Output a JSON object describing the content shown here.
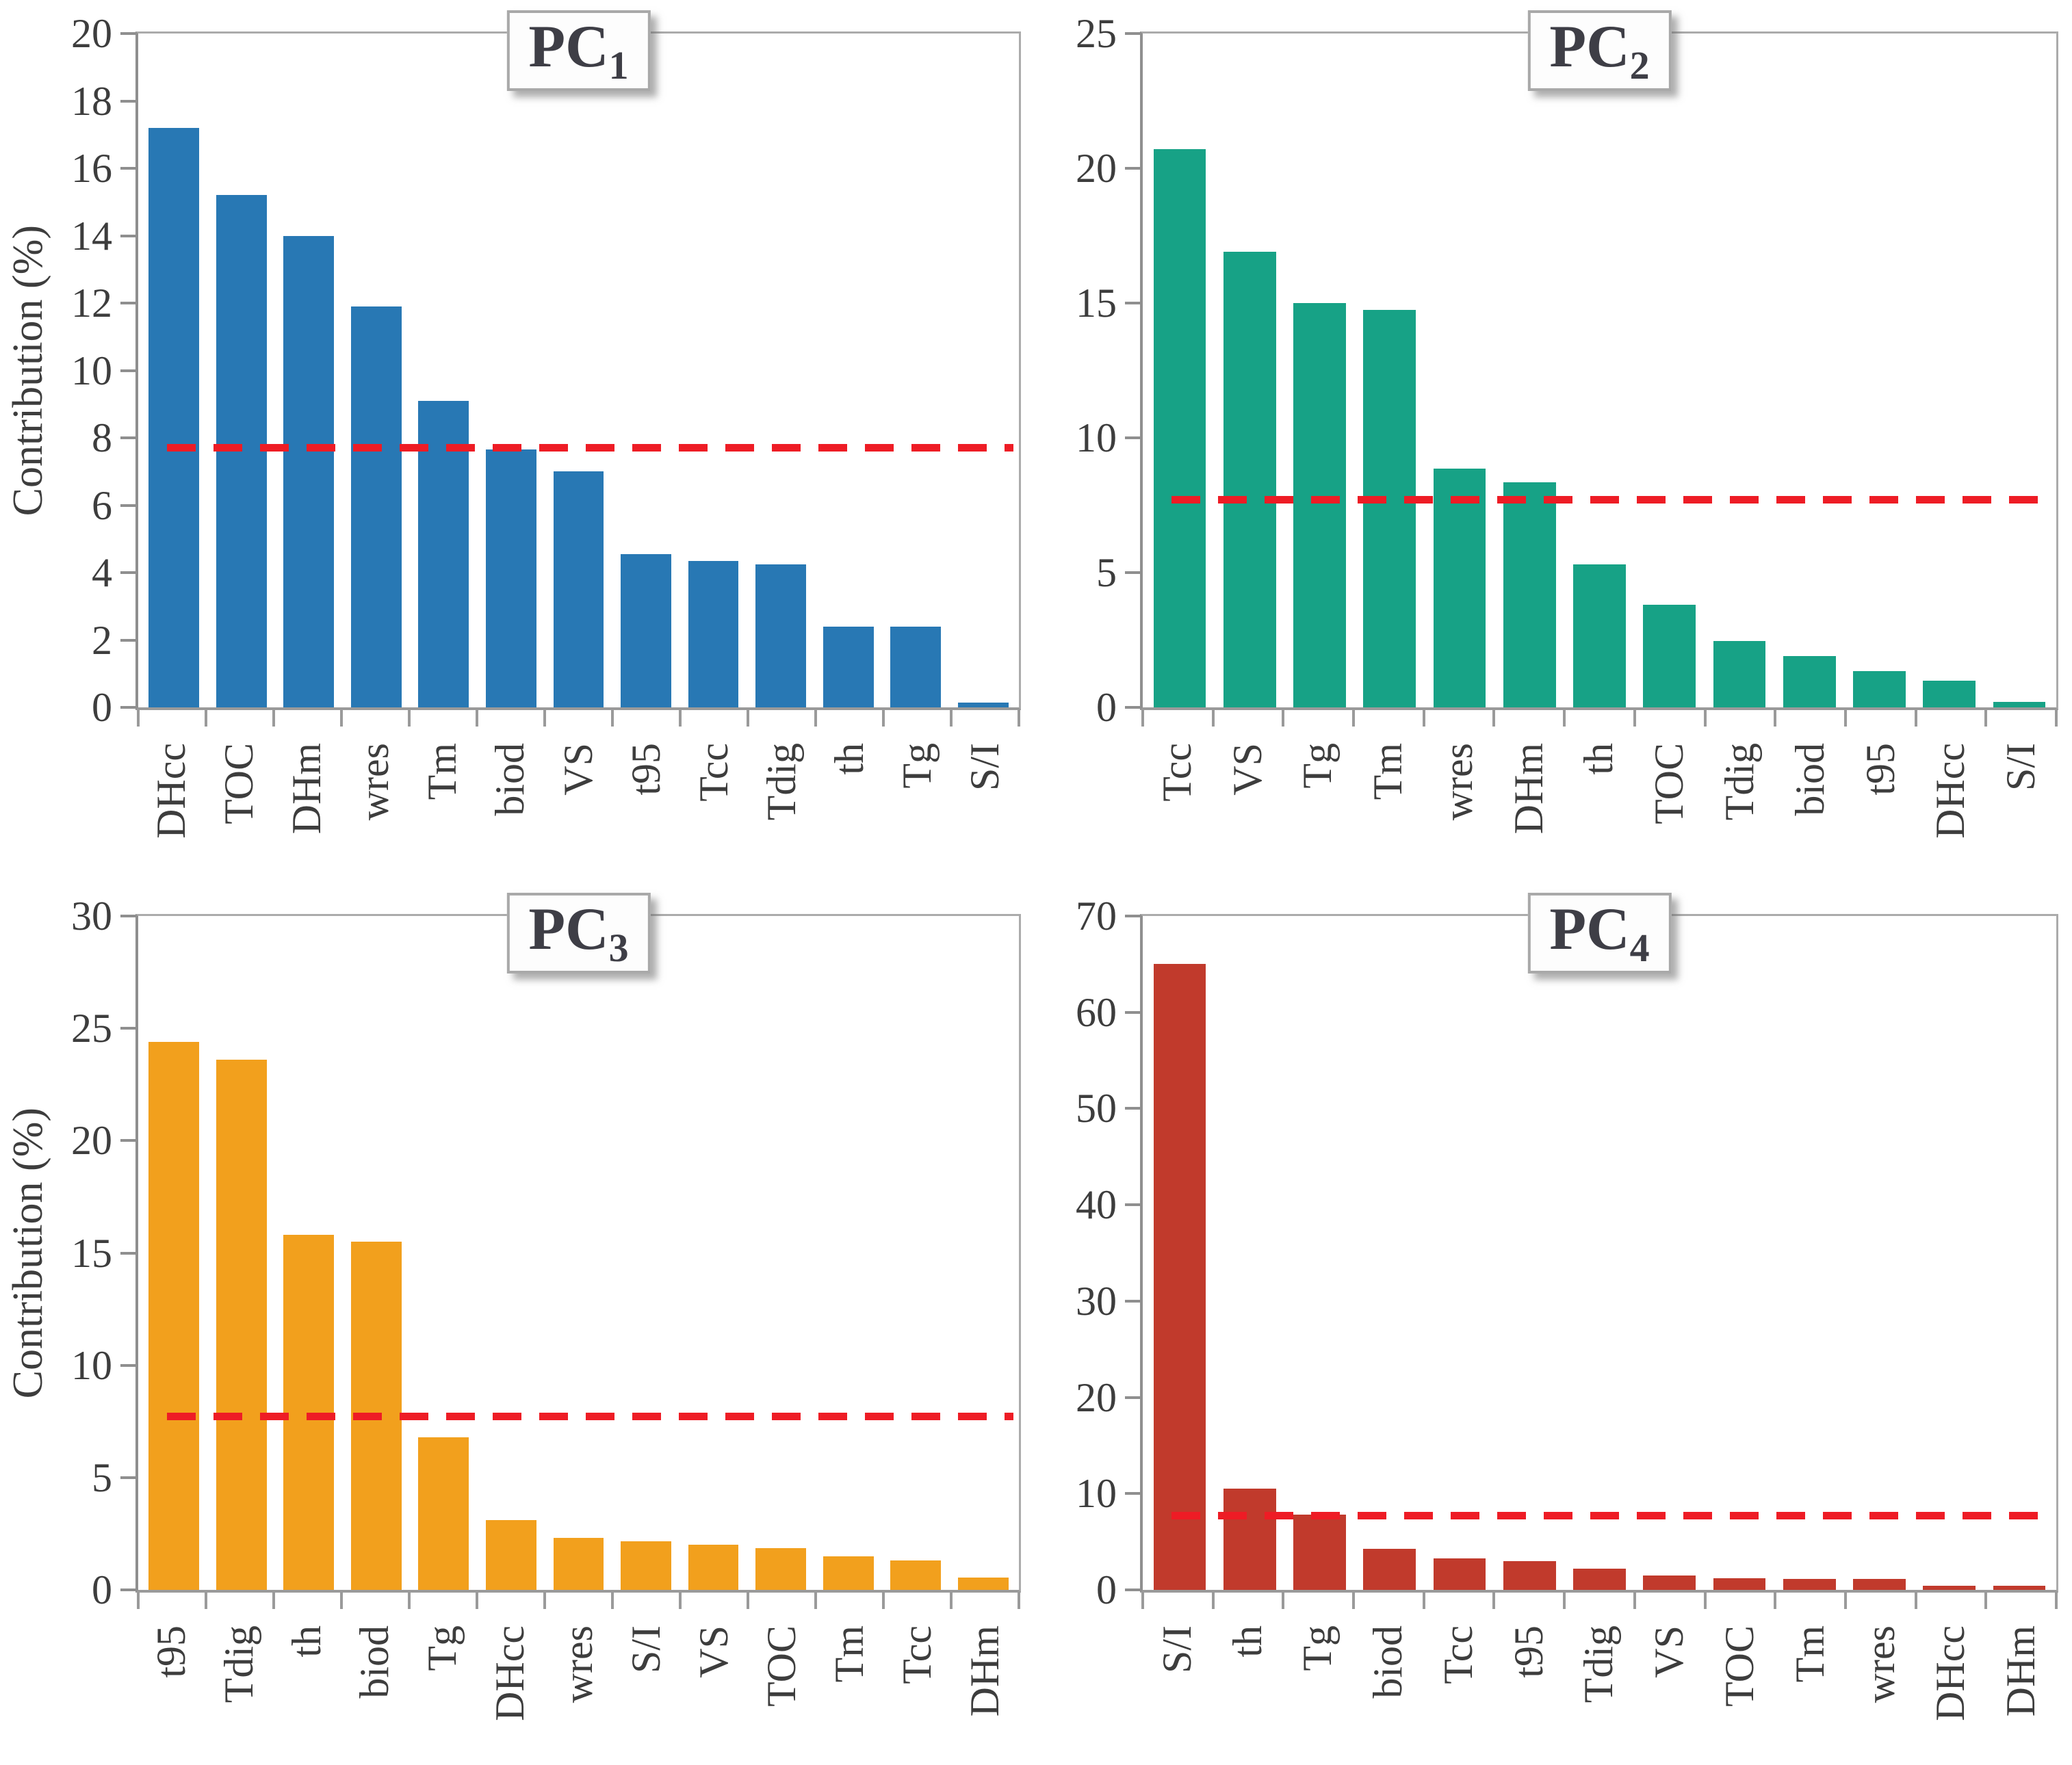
{
  "figure": {
    "background": "#ffffff",
    "axis_color": "#8f8f8f",
    "border_color": "#ababab",
    "text_color": "#3d3d3d"
  },
  "chart_data": [
    {
      "type": "bar",
      "title": "PC1",
      "title_main": "PC",
      "title_sub": "1",
      "xlabel": "",
      "ylabel": "Contribution (%)",
      "ylim": [
        0,
        20
      ],
      "ytick_step": 2,
      "grid": false,
      "legend": "none",
      "bar_color": "#2878b4",
      "threshold_line": 7.7,
      "threshold_color": "#ee1c25",
      "categories": [
        "DHcc",
        "TOC",
        "DHm",
        "wres",
        "Tm",
        "biod",
        "VS",
        "t95",
        "Tcc",
        "Tdig",
        "th",
        "Tg",
        "S/I"
      ],
      "values": [
        17.2,
        15.2,
        14.0,
        11.9,
        9.1,
        7.65,
        7.0,
        4.55,
        4.35,
        4.25,
        2.4,
        2.4,
        0.15
      ]
    },
    {
      "type": "bar",
      "title": "PC2",
      "title_main": "PC",
      "title_sub": "2",
      "xlabel": "",
      "ylabel": "",
      "ylim": [
        0,
        25
      ],
      "ytick_step": 5,
      "grid": false,
      "legend": "none",
      "bar_color": "#17a286",
      "threshold_line": 7.7,
      "threshold_color": "#ee1c25",
      "categories": [
        "Tcc",
        "VS",
        "Tg",
        "Tm",
        "wres",
        "DHm",
        "th",
        "TOC",
        "Tdig",
        "biod",
        "t95",
        "DHcc",
        "S/I"
      ],
      "values": [
        20.7,
        16.9,
        15.0,
        14.75,
        8.85,
        8.35,
        5.3,
        3.8,
        2.45,
        1.9,
        1.35,
        1.0,
        0.2
      ]
    },
    {
      "type": "bar",
      "title": "PC3",
      "title_main": "PC",
      "title_sub": "3",
      "xlabel": "",
      "ylabel": "Contribution (%)",
      "ylim": [
        0,
        30
      ],
      "ytick_step": 5,
      "grid": false,
      "legend": "none",
      "bar_color": "#f2a01d",
      "threshold_line": 7.7,
      "threshold_color": "#ee1c25",
      "categories": [
        "t95",
        "Tdig",
        "th",
        "biod",
        "Tg",
        "DHcc",
        "wres",
        "S/I",
        "VS",
        "TOC",
        "Tm",
        "Tcc",
        "DHm"
      ],
      "values": [
        24.4,
        23.6,
        15.8,
        15.5,
        6.8,
        3.1,
        2.3,
        2.15,
        2.0,
        1.85,
        1.5,
        1.3,
        0.55
      ]
    },
    {
      "type": "bar",
      "title": "PC4",
      "title_main": "PC",
      "title_sub": "4",
      "xlabel": "",
      "ylabel": "",
      "ylim": [
        0,
        70
      ],
      "ytick_step": 10,
      "grid": false,
      "legend": "none",
      "bar_color": "#c13a2c",
      "threshold_line": 7.7,
      "threshold_color": "#ee1c25",
      "categories": [
        "S/I",
        "th",
        "Tg",
        "biod",
        "Tcc",
        "t95",
        "Tdig",
        "VS",
        "TOC",
        "Tm",
        "wres",
        "DHcc",
        "DHm"
      ],
      "values": [
        65.0,
        10.5,
        7.8,
        4.3,
        3.3,
        3.0,
        2.2,
        1.5,
        1.2,
        1.15,
        1.15,
        0.4,
        0.4
      ]
    }
  ]
}
